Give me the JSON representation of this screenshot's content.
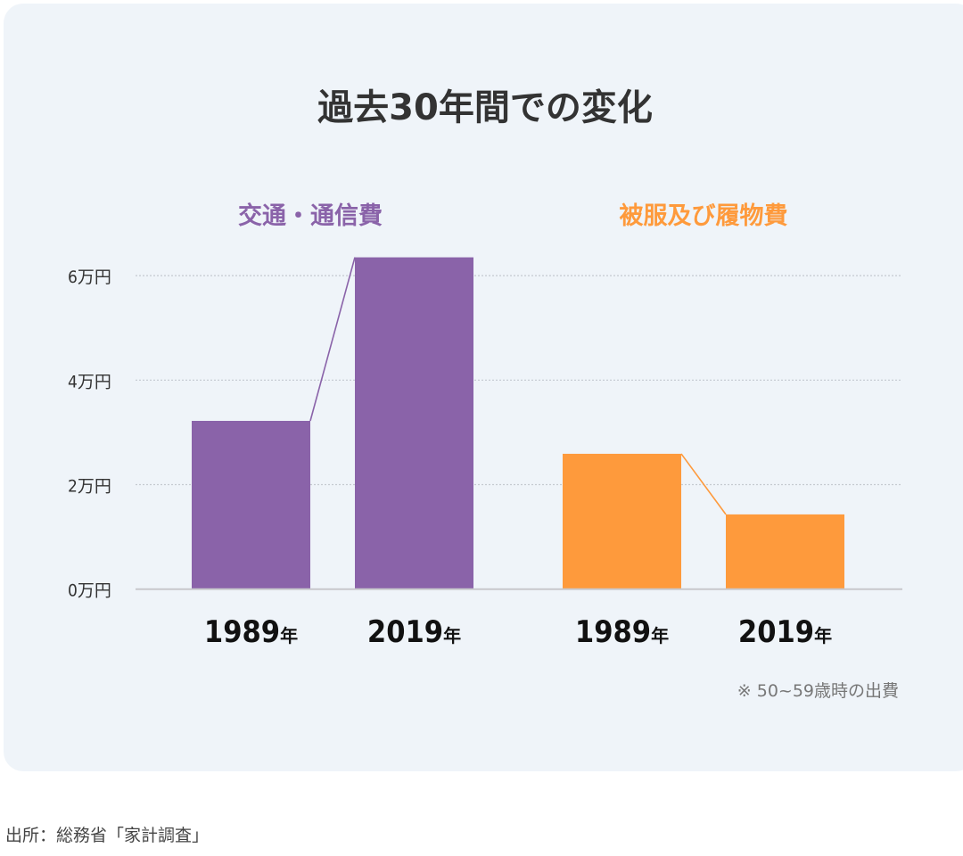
{
  "chart_data": {
    "type": "bar",
    "title": "過去30年間での変化",
    "groups": [
      {
        "name": "交通・通信費",
        "color": "#8a63a9",
        "categories": [
          "1989",
          "2019"
        ],
        "values": [
          3.22,
          6.35
        ]
      },
      {
        "name": "被服及び履物費",
        "color": "#fe9a3c",
        "categories": [
          "1989",
          "2019"
        ],
        "values": [
          2.59,
          1.43
        ]
      }
    ],
    "x_suffix": "年",
    "y_unit": "万円",
    "yticks": [
      0,
      2,
      4,
      6
    ],
    "ylim": [
      0,
      6.4
    ],
    "grid": true,
    "connector_lines": true,
    "note": "※ 50~59歳時の出費"
  },
  "source": "出所：総務省「家計調査」"
}
